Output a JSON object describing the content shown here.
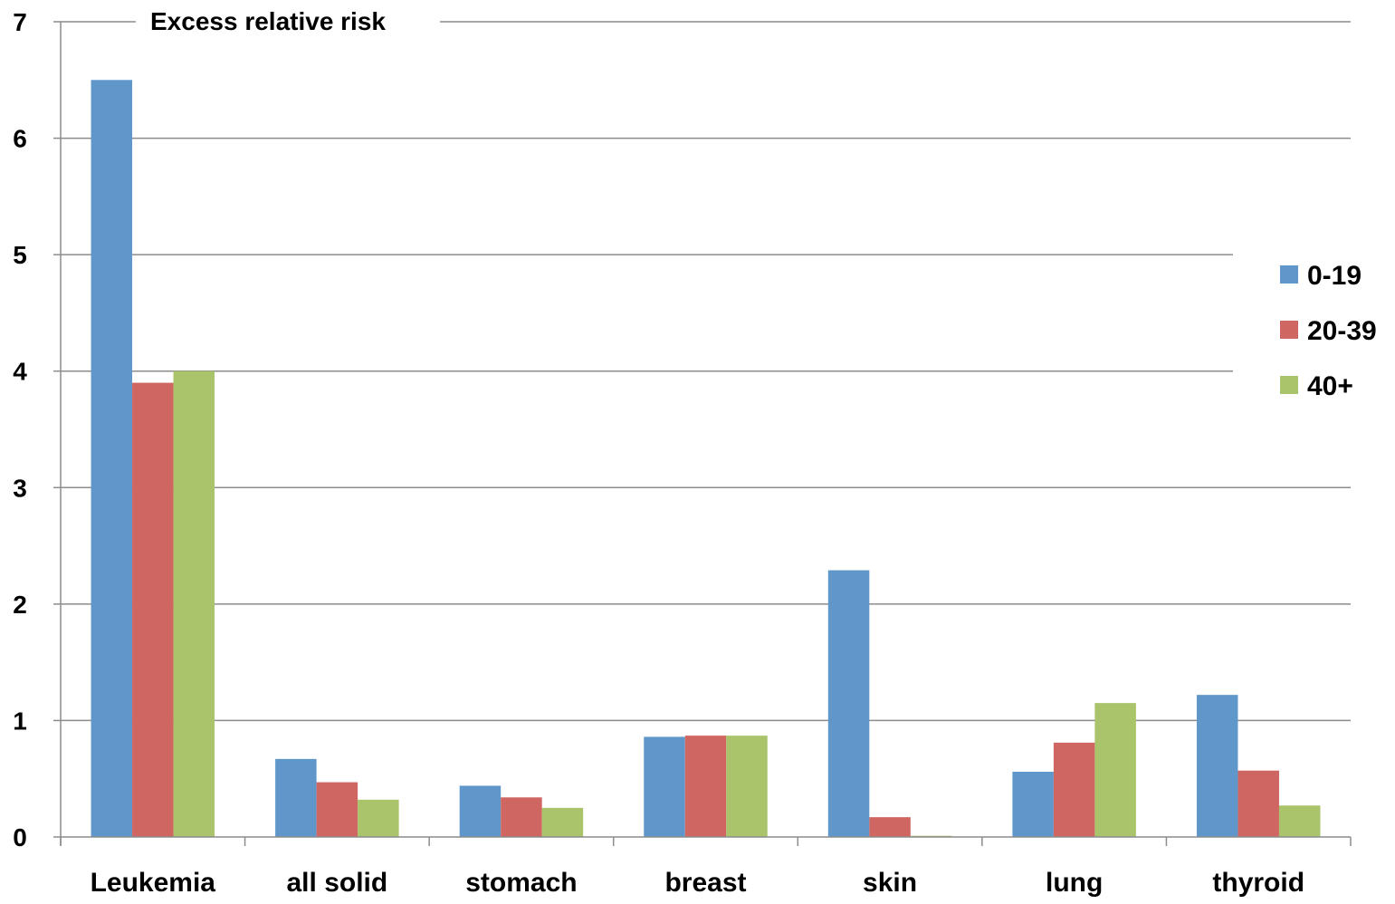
{
  "chart_data": {
    "type": "bar",
    "title": "Excess relative risk",
    "xlabel": "",
    "ylabel": "",
    "ylim": [
      0,
      7
    ],
    "yticks": [
      0,
      1,
      2,
      3,
      4,
      5,
      6,
      7
    ],
    "ytick_labels": [
      "0",
      "1",
      "2",
      "3",
      "4",
      "5",
      "6",
      "7"
    ],
    "grid": true,
    "legend_position": "right",
    "categories": [
      "Leukemia",
      "all solid",
      "stomach",
      "breast",
      "skin",
      "lung",
      "thyroid"
    ],
    "series": [
      {
        "name": "0-19",
        "color": "#6097cb",
        "values": [
          6.5,
          0.67,
          0.44,
          0.86,
          2.29,
          0.56,
          1.22
        ]
      },
      {
        "name": "20-39",
        "color": "#cf6661",
        "values": [
          3.9,
          0.47,
          0.34,
          0.87,
          0.17,
          0.81,
          0.57
        ]
      },
      {
        "name": "40+",
        "color": "#a9c46a",
        "values": [
          4.0,
          0.32,
          0.25,
          0.87,
          0.01,
          1.15,
          0.27
        ]
      }
    ]
  }
}
